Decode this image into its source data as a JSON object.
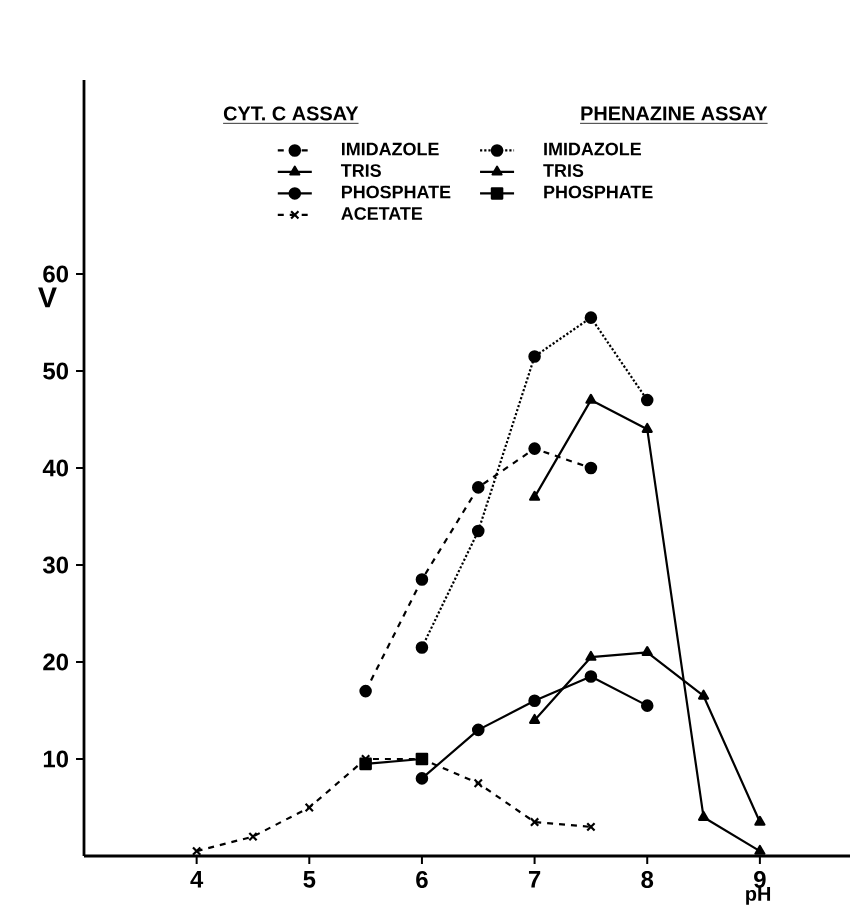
{
  "chart_data": {
    "type": "line",
    "xlabel": "pH",
    "ylabel": "V",
    "annotations": [
      "CYT. C ASSAY",
      "PHENAZINE ASSAY"
    ],
    "xlim": [
      3,
      9.8
    ],
    "xticks": [
      4,
      5,
      6,
      7,
      8,
      9
    ],
    "ylim": [
      0,
      80
    ],
    "yticks": [
      10,
      20,
      30,
      40,
      50,
      60
    ],
    "legend": "top",
    "series": [
      {
        "name": "IMIDAZOLE",
        "color": "#000000",
        "marker": "circle",
        "line_style": "dashed",
        "x": [
          5.5,
          6,
          6.5,
          7,
          7.5
        ],
        "values": [
          17,
          28.5,
          38,
          42,
          40
        ]
      },
      {
        "name": "IMIDAZOLE",
        "color": "#000000",
        "marker": "circle",
        "line_style": "dotted",
        "x": [
          6,
          6.5,
          7,
          7.5,
          8
        ],
        "values": [
          21.5,
          33.5,
          51.5,
          55.5,
          47
        ]
      },
      {
        "name": "TRIS",
        "color": "#000000",
        "marker": "triangle",
        "line_style": "solid",
        "x": [
          7,
          7.5,
          8,
          8.5,
          9
        ],
        "values": [
          14,
          20.5,
          21,
          16.5,
          3.5
        ]
      },
      {
        "name": "TRIS",
        "color": "#000000",
        "marker": "triangle",
        "line_style": "solid",
        "x": [
          7,
          7.5,
          8,
          8.5,
          9
        ],
        "values": [
          37,
          47,
          44,
          4,
          0.5
        ]
      },
      {
        "name": "PHOSPHATE",
        "color": "#000000",
        "marker": "circle",
        "line_style": "solid",
        "x": [
          6,
          6.5,
          7,
          7.5,
          8
        ],
        "values": [
          8,
          13,
          16,
          18.5,
          15.5
        ]
      },
      {
        "name": "PHOSPHATE",
        "color": "#000000",
        "marker": "square",
        "line_style": "solid",
        "x": [
          5.5,
          6
        ],
        "values": [
          9.5,
          10
        ]
      },
      {
        "name": "ACETATE",
        "color": "#000000",
        "marker": "cross",
        "line_style": "dashed",
        "x": [
          4,
          4.5,
          5,
          5.5,
          6,
          6.5,
          7,
          7.5
        ],
        "values": [
          0.5,
          2,
          5,
          10,
          10,
          7.5,
          3.5,
          3
        ]
      }
    ]
  }
}
